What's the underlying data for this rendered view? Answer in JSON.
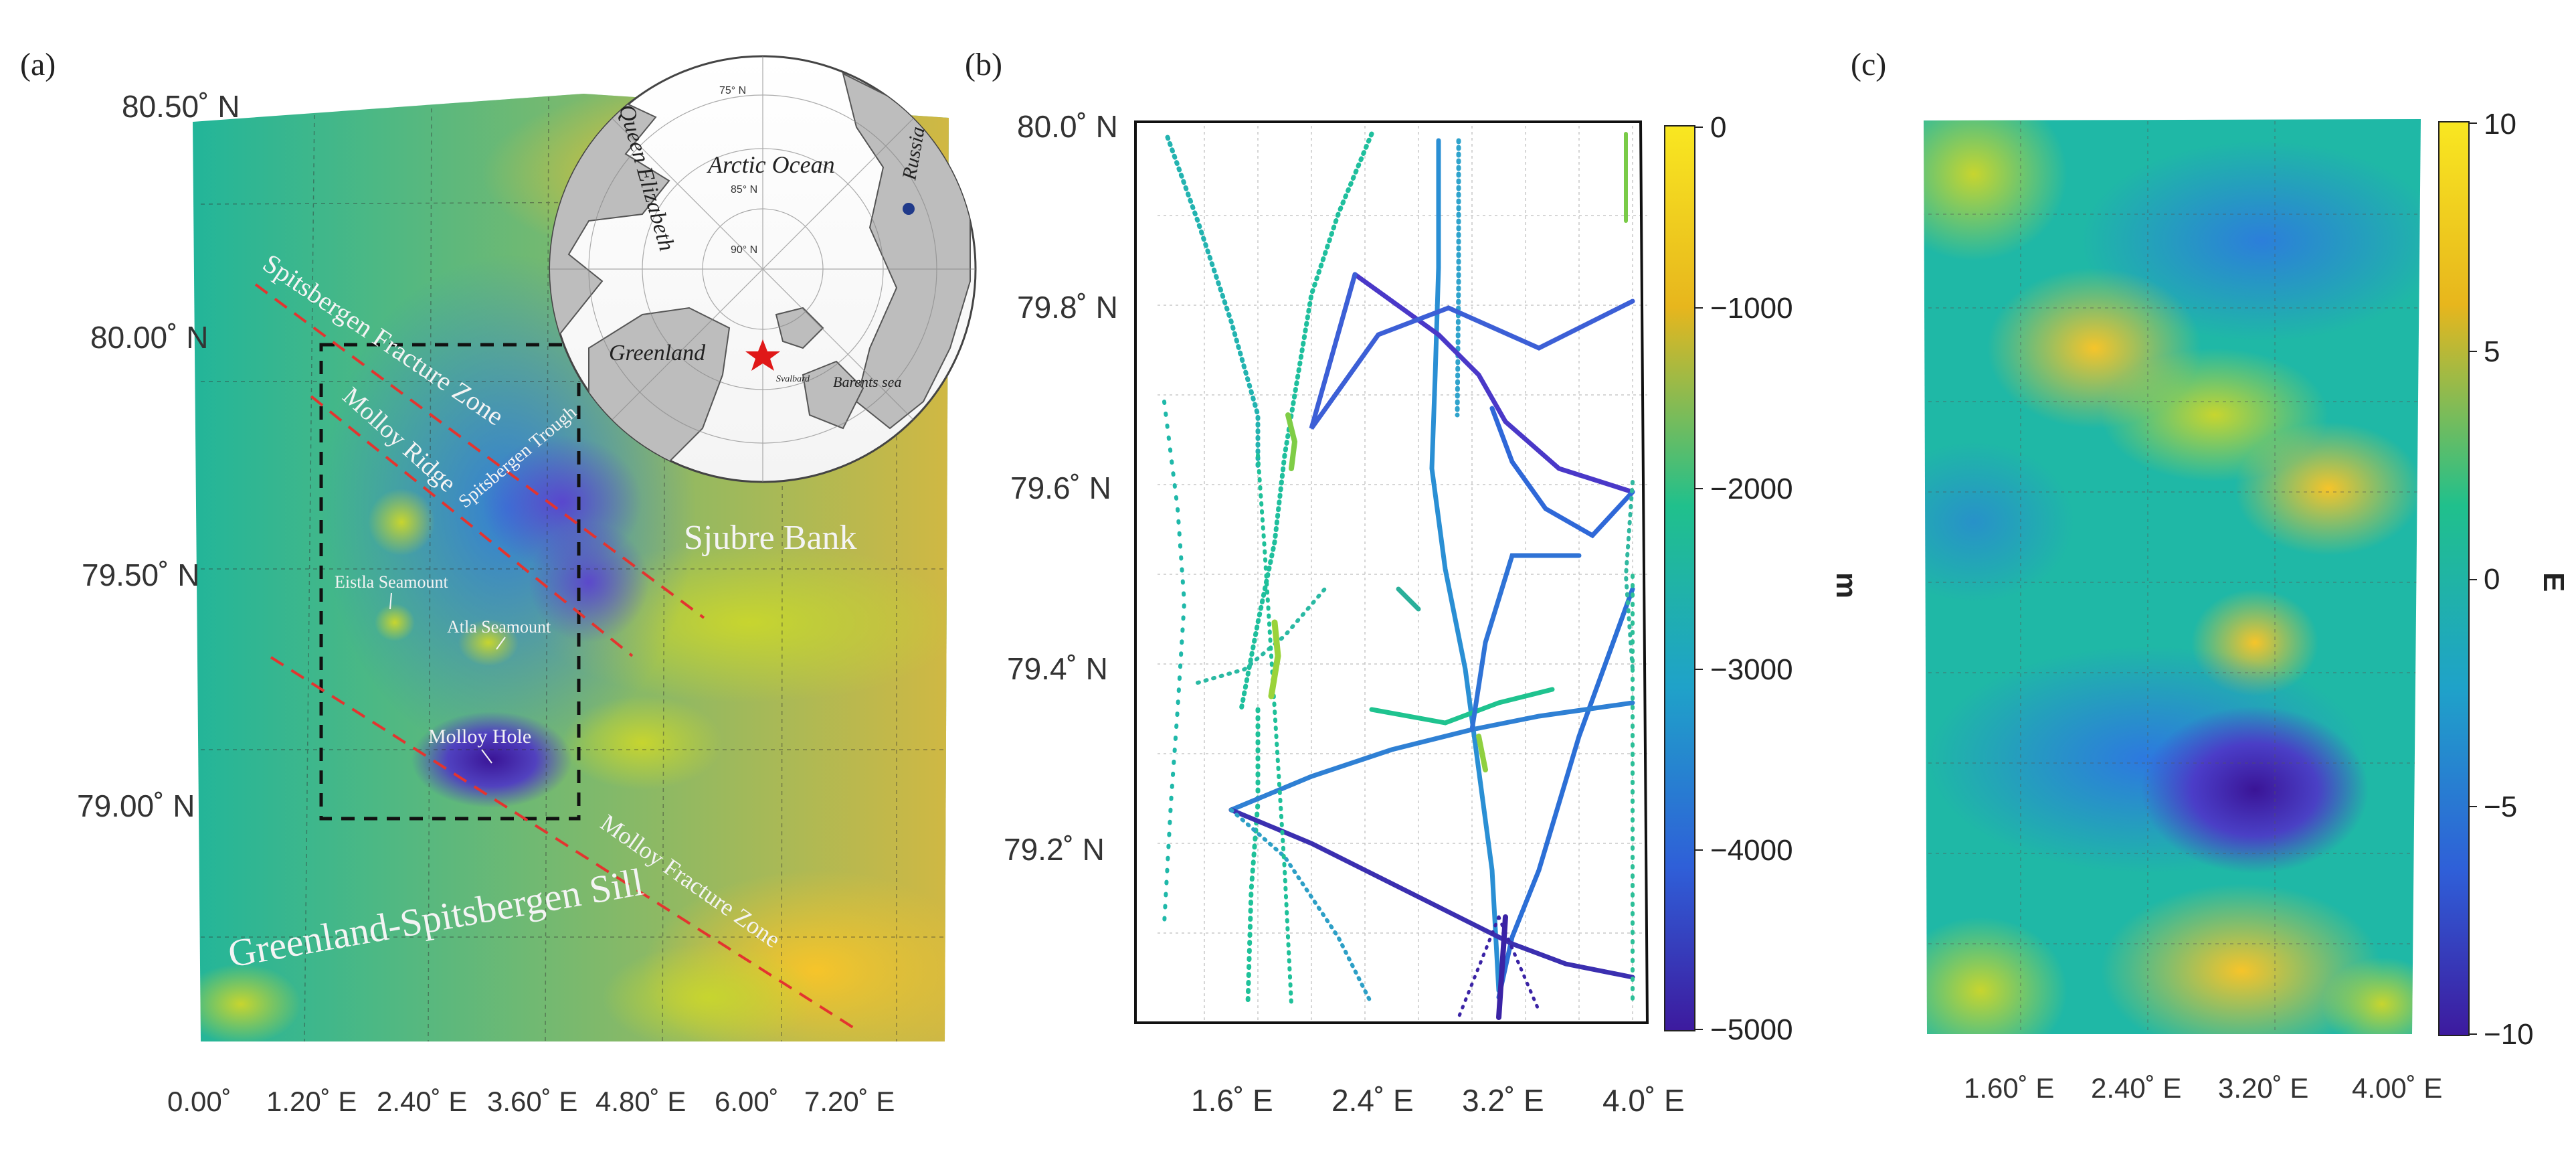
{
  "panels": {
    "a": {
      "label": "(a)",
      "lat_ticks": [
        "80.50˚ N",
        "80.00˚ N",
        "79.50˚ N",
        "79.00˚ N"
      ],
      "lon_ticks": [
        "0.00˚",
        "1.20˚ E",
        "2.40˚ E",
        "3.60˚ E",
        "4.80˚ E",
        "6.00˚",
        "7.20˚ E"
      ],
      "labels": {
        "spitsbergen_fz": "Spitsbergen Fracture Zone",
        "molloy_ridge": "Molloy Ridge",
        "spitsbergen_trough": "Spitsbergen Trough",
        "sjubre_bank": "Sjubre Bank",
        "eistla": "Eistla Seamount",
        "atla": "Atla Seamount",
        "molloy_hole": "Molloy Hole",
        "molloy_fz": "Molloy Fracture Zone",
        "gs_sill": "Greenland-Spitsbergen Sill"
      },
      "inset": {
        "arctic_ocean": "Arctic Ocean",
        "queen_elizabeth": "Queen Elizabeth",
        "greenland": "Greenland",
        "russia": "Russia",
        "barents_sea": "Barents sea",
        "svalbard": "Svalbard",
        "lat_75": "75° N",
        "lat_85": "85° N",
        "lat_90": "90° N"
      }
    },
    "b": {
      "label": "(b)",
      "lat_ticks": [
        "80.0˚ N",
        "79.8˚ N",
        "79.6˚ N",
        "79.4˚ N",
        "79.2˚ N"
      ],
      "lon_ticks": [
        "1.6˚ E",
        "2.4˚ E",
        "3.2˚ E",
        "4.0˚ E"
      ],
      "colorbar": {
        "ticks": [
          "0",
          "−1000",
          "−2000",
          "−3000",
          "−4000",
          "−5000"
        ],
        "unit": "m"
      }
    },
    "c": {
      "label": "(c)",
      "lon_ticks": [
        "1.60˚ E",
        "2.40˚ E",
        "3.20˚ E",
        "4.00˚ E"
      ],
      "colorbar": {
        "ticks": [
          "10",
          "5",
          "0",
          "−5",
          "−10"
        ],
        "unit": "E"
      }
    }
  },
  "colors": {
    "viridis_top": "#f5e61e",
    "viridis_mid": "#1fb79a",
    "viridis_low": "#2b6fd6",
    "viridis_bottom": "#3b1fa6",
    "fault_line": "#e3342f",
    "box_line": "#111111"
  }
}
